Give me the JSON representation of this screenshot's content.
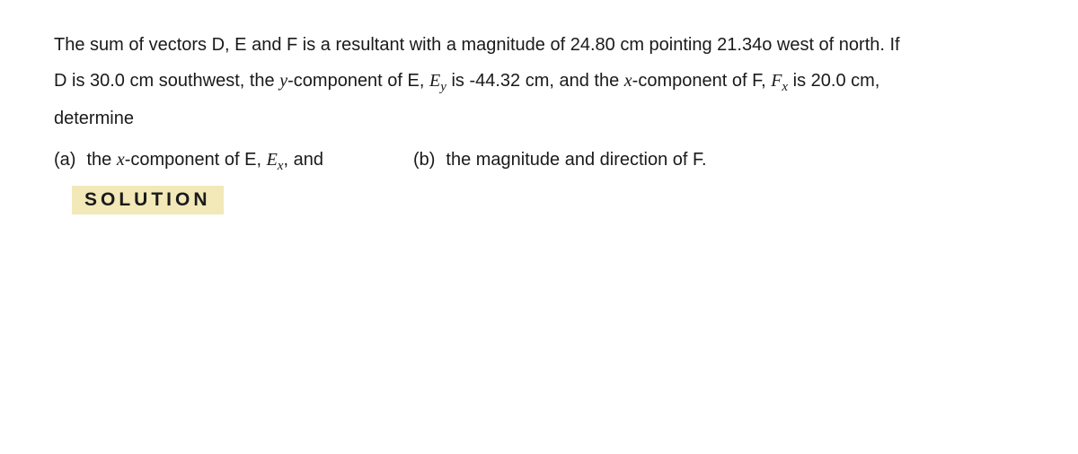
{
  "problem": {
    "line1_a": "The sum of vectors D, E and F is a resultant with a magnitude of 24.80 cm pointing 21.34o west of north. If",
    "line2_prefix": "D is 30.0 cm southwest, the ",
    "line2_ycomp": "y",
    "line2_mid1": "-component of E, ",
    "line2_Ey_E": "E",
    "line2_Ey_y": "y",
    "line2_mid2": " is -44.32 cm, and the ",
    "line2_xcomp": "x",
    "line2_mid3": "-component of F, ",
    "line2_Fx_F": "F",
    "line2_Fx_x": "x",
    "line2_end": " is 20.0 cm,",
    "line3": "determine"
  },
  "questions": {
    "a_label": "(a)",
    "a_prefix": "the ",
    "a_x": "x",
    "a_mid": "-component of E, ",
    "a_Ex_E": "E",
    "a_Ex_x": "x",
    "a_end": ", and",
    "b_label": "(b)",
    "b_text": "the magnitude and direction of F."
  },
  "solution_label": "SOLUTION"
}
